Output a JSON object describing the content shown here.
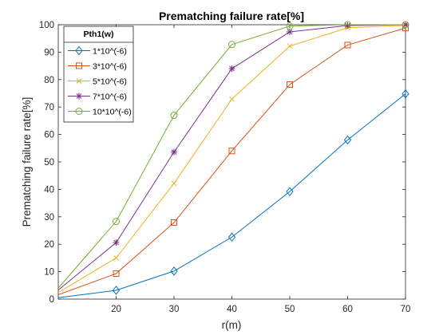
{
  "chart_data": {
    "type": "line",
    "title": "Prematching failure rate[%]",
    "xlabel": "r(m)",
    "ylabel": "Prematching failure rate[%]",
    "xlim": [
      10,
      70
    ],
    "ylim": [
      0,
      100
    ],
    "xticks": [
      20,
      30,
      40,
      50,
      60,
      70
    ],
    "yticks": [
      0,
      10,
      20,
      30,
      40,
      50,
      60,
      70,
      80,
      90,
      100
    ],
    "grid": false,
    "legend": {
      "title": "Pth1(w)",
      "position": "top-left"
    },
    "x": [
      10,
      20,
      30,
      40,
      50,
      60,
      70
    ],
    "series": [
      {
        "name": "1*10^(-6)",
        "color": "#0072BD",
        "marker": "diamond",
        "values": [
          0.5,
          3.2,
          10.2,
          22.6,
          39.2,
          58,
          74.8
        ]
      },
      {
        "name": "3*10^(-6)",
        "color": "#D95319",
        "marker": "square",
        "values": [
          1.6,
          9.3,
          27.9,
          54,
          78.2,
          92.6,
          98.8
        ]
      },
      {
        "name": "5*10^(-6)",
        "color": "#EDB120",
        "marker": "x",
        "values": [
          2.4,
          15,
          42.2,
          72.9,
          92.2,
          98.9,
          99.8
        ]
      },
      {
        "name": "7*10^(-6)",
        "color": "#7E2F8E",
        "marker": "asterisk",
        "values": [
          3.3,
          20.6,
          53.6,
          84,
          97.4,
          99.7,
          100
        ]
      },
      {
        "name": "10*10^(-6)",
        "color": "#77AC30",
        "marker": "circle",
        "values": [
          4,
          28.3,
          67,
          92.8,
          99.5,
          100,
          100
        ]
      }
    ]
  }
}
